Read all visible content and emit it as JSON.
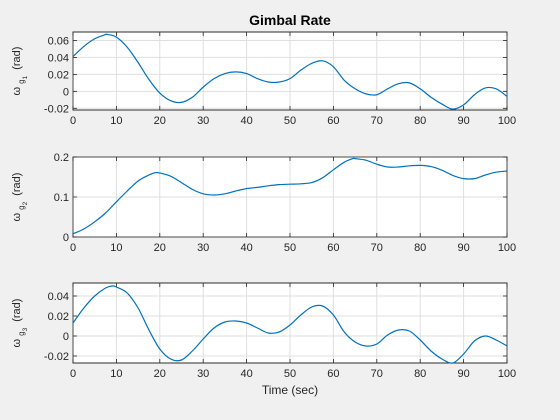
{
  "colors": {
    "line": "#0072bd",
    "background": "#f0f0f0",
    "axes_bg": "#ffffff"
  },
  "chart_data": [
    {
      "type": "line",
      "title": "Gimbal Rate",
      "ylabel_parts": [
        "ω",
        "g",
        "1",
        "(rad)"
      ],
      "xlabel": "",
      "xlim": [
        0,
        100
      ],
      "ylim": [
        -0.022,
        0.07
      ],
      "xticks": [
        0,
        10,
        20,
        30,
        40,
        50,
        60,
        70,
        80,
        90,
        100
      ],
      "yticks": [
        -0.02,
        0,
        0.02,
        0.04,
        0.06
      ],
      "ytick_labels": [
        "-0.02",
        "0",
        "0.02",
        "0.04",
        "0.06"
      ],
      "grid": true,
      "x": [
        0,
        2.5,
        5,
        7.5,
        8,
        10,
        12.5,
        15,
        17.5,
        20,
        22.5,
        25,
        27.5,
        30,
        32.5,
        35,
        37.5,
        40,
        42.5,
        45,
        47.5,
        50,
        52.5,
        55,
        57.5,
        60,
        62.5,
        65,
        67.5,
        70,
        72.5,
        75,
        77.5,
        80,
        82.5,
        85,
        87.5,
        90,
        92.5,
        95,
        97.5,
        100
      ],
      "y": [
        0.041,
        0.053,
        0.062,
        0.067,
        0.067,
        0.064,
        0.052,
        0.034,
        0.014,
        -0.002,
        -0.011,
        -0.013,
        -0.007,
        0.005,
        0.015,
        0.021,
        0.023,
        0.021,
        0.015,
        0.011,
        0.011,
        0.015,
        0.025,
        0.033,
        0.036,
        0.029,
        0.013,
        0.003,
        -0.003,
        -0.004,
        0.003,
        0.009,
        0.01,
        0.003,
        -0.007,
        -0.015,
        -0.021,
        -0.016,
        -0.004,
        0.004,
        0.003,
        -0.006
      ]
    },
    {
      "type": "line",
      "title": "",
      "ylabel_parts": [
        "ω",
        "g",
        "2",
        "(rad)"
      ],
      "xlabel": "",
      "xlim": [
        0,
        100
      ],
      "ylim": [
        0,
        0.2
      ],
      "xticks": [
        0,
        10,
        20,
        30,
        40,
        50,
        60,
        70,
        80,
        90,
        100
      ],
      "yticks": [
        0,
        0.1,
        0.2
      ],
      "ytick_labels": [
        "0",
        "0.1",
        "0.2"
      ],
      "grid": true,
      "x": [
        0,
        2.5,
        5,
        7.5,
        10,
        12.5,
        15,
        17.5,
        19,
        20,
        22.5,
        25,
        27.5,
        30,
        32.5,
        35,
        37.5,
        40,
        42.5,
        45,
        47.5,
        50,
        52.5,
        55,
        57.5,
        60,
        62.5,
        64.5,
        65,
        67.5,
        70,
        72.5,
        75,
        77.5,
        80,
        82.5,
        85,
        87.5,
        90,
        92.5,
        95,
        97.5,
        100
      ],
      "y": [
        0.008,
        0.02,
        0.038,
        0.06,
        0.088,
        0.115,
        0.14,
        0.155,
        0.161,
        0.16,
        0.152,
        0.136,
        0.119,
        0.108,
        0.105,
        0.108,
        0.115,
        0.121,
        0.124,
        0.128,
        0.131,
        0.132,
        0.133,
        0.136,
        0.148,
        0.168,
        0.187,
        0.196,
        0.196,
        0.192,
        0.182,
        0.175,
        0.175,
        0.178,
        0.179,
        0.176,
        0.167,
        0.154,
        0.146,
        0.146,
        0.155,
        0.162,
        0.165
      ]
    },
    {
      "type": "line",
      "title": "",
      "ylabel_parts": [
        "ω",
        "g",
        "3",
        "(rad)"
      ],
      "xlabel": "Time (sec)",
      "xlim": [
        0,
        100
      ],
      "ylim": [
        -0.027,
        0.053
      ],
      "xticks": [
        0,
        10,
        20,
        30,
        40,
        50,
        60,
        70,
        80,
        90,
        100
      ],
      "yticks": [
        -0.02,
        0,
        0.02,
        0.04
      ],
      "ytick_labels": [
        "-0.02",
        "0",
        "0.02",
        "0.04"
      ],
      "grid": true,
      "x": [
        0,
        2.5,
        5,
        7.5,
        9,
        10,
        12.5,
        15,
        17.5,
        20,
        22.5,
        25,
        27.5,
        30,
        32.5,
        35,
        37.5,
        40,
        42.5,
        45,
        47.5,
        50,
        52.5,
        55,
        57.5,
        60,
        62.5,
        65,
        67.5,
        70,
        72.5,
        75,
        77.5,
        80,
        82.5,
        85,
        87.5,
        90,
        92.5,
        95,
        97.5,
        100
      ],
      "y": [
        0.013,
        0.028,
        0.04,
        0.048,
        0.05,
        0.049,
        0.043,
        0.028,
        0.006,
        -0.013,
        -0.023,
        -0.024,
        -0.015,
        -0.003,
        0.008,
        0.014,
        0.015,
        0.013,
        0.008,
        0.003,
        0.004,
        0.011,
        0.021,
        0.029,
        0.03,
        0.021,
        0.004,
        -0.006,
        -0.01,
        -0.008,
        0.001,
        0.006,
        0.005,
        -0.004,
        -0.015,
        -0.023,
        -0.027,
        -0.018,
        -0.005,
        0.0,
        -0.004,
        -0.01
      ]
    }
  ]
}
